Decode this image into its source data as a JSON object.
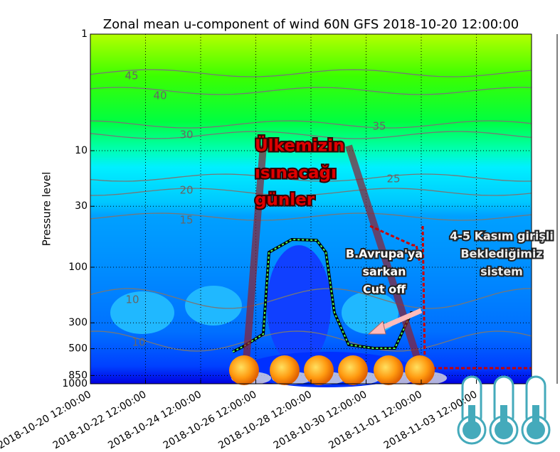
{
  "chart_data": {
    "type": "contour",
    "title": "Zonal mean u-component of wind 60N GFS 2018-10-20 12:00:00",
    "ylabel": "Pressure level",
    "ylim": [
      1,
      1000
    ],
    "ylog": true,
    "yinverted": true,
    "yticks": [
      1,
      10,
      30,
      100,
      300,
      500,
      850,
      1000
    ],
    "xlim": [
      "2018-10-20 12:00:00",
      "2018-11-05 12:00:00"
    ],
    "xticks": [
      "2018-10-20 12:00:00",
      "2018-10-22 12:00:00",
      "2018-10-24 12:00:00",
      "2018-10-26 12:00:00",
      "2018-10-28 12:00:00",
      "2018-10-30 12:00:00",
      "2018-11-01 12:00:00",
      "2018-11-03 12:00:00"
    ],
    "grid": true,
    "contour_levels": [
      45,
      40,
      35,
      30,
      25,
      20,
      15,
      10,
      10
    ],
    "annotations": [
      {
        "lines": [
          "Ülkemizin",
          "ısınacağı",
          "günler"
        ]
      },
      {
        "lines": [
          "B.Avrupa'ya",
          "sarkan",
          "Cut off"
        ]
      },
      {
        "lines": [
          "4-5 Kasım girişli",
          "Beklediğimiz",
          "sistem"
        ]
      }
    ]
  }
}
